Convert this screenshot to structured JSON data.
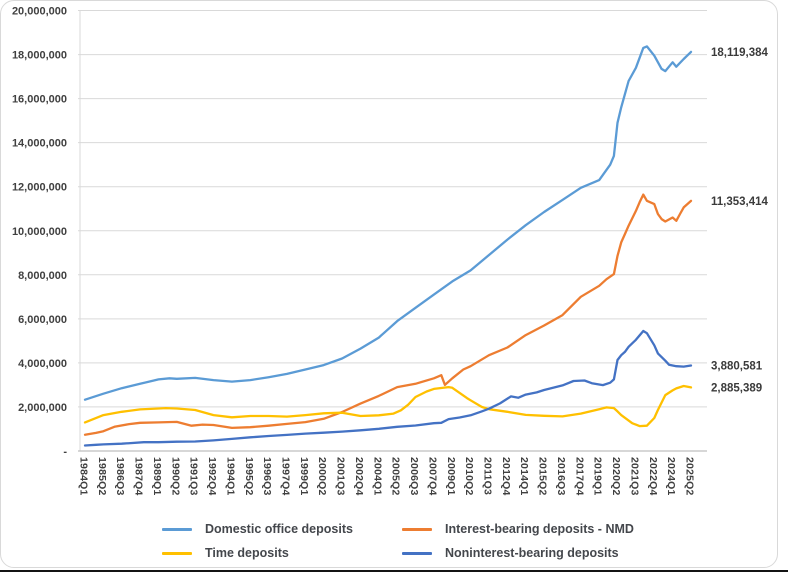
{
  "chart_data": {
    "type": "line",
    "title": "",
    "grid": "horizontal",
    "legend_position": "bottom",
    "text_color": "#404040",
    "gridline_color": "#D9D9D9",
    "axis_line_color": "#BFBFBF",
    "x_axis": {
      "first": "1984Q1",
      "last": "2025Q2",
      "total_points": 166,
      "quarters_per_tick": 5,
      "tick_labels": [
        "1984Q1",
        "1985Q2",
        "1986Q3",
        "1987Q4",
        "1989Q1",
        "1990Q2",
        "1991Q3",
        "1992Q4",
        "1994Q1",
        "1995Q2",
        "1996Q3",
        "1997Q4",
        "1999Q1",
        "2000Q2",
        "2001Q3",
        "2002Q4",
        "2004Q1",
        "2005Q2",
        "2006Q3",
        "2007Q4",
        "2009Q1",
        "2010Q2",
        "2011Q3",
        "2012Q4",
        "2014Q1",
        "2015Q2",
        "2016Q3",
        "2017Q4",
        "2019Q1",
        "2020Q2",
        "2021Q3",
        "2022Q4",
        "2024Q1",
        "2025Q2"
      ]
    },
    "y_axis": {
      "min": 0,
      "max": 20000000,
      "step": 2000000,
      "tick_labels": [
        "20,000,000",
        "18,000,000",
        "16,000,000",
        "14,000,000",
        "12,000,000",
        "10,000,000",
        "8,000,000",
        "6,000,000",
        "4,000,000",
        "2,000,000",
        "-"
      ]
    },
    "series": [
      {
        "name": "Domestic office deposits",
        "color": "#5B9BD5",
        "end_value": 18119384,
        "end_label": "18,119,384",
        "points": [
          [
            0,
            2330000
          ],
          [
            5,
            2600000
          ],
          [
            10,
            2850000
          ],
          [
            15,
            3050000
          ],
          [
            20,
            3250000
          ],
          [
            23,
            3300000
          ],
          [
            25,
            3280000
          ],
          [
            30,
            3320000
          ],
          [
            35,
            3220000
          ],
          [
            40,
            3150000
          ],
          [
            45,
            3220000
          ],
          [
            50,
            3350000
          ],
          [
            55,
            3500000
          ],
          [
            60,
            3700000
          ],
          [
            65,
            3900000
          ],
          [
            70,
            4200000
          ],
          [
            75,
            4650000
          ],
          [
            80,
            5150000
          ],
          [
            85,
            5900000
          ],
          [
            90,
            6500000
          ],
          [
            95,
            7100000
          ],
          [
            100,
            7700000
          ],
          [
            105,
            8200000
          ],
          [
            110,
            8900000
          ],
          [
            115,
            9600000
          ],
          [
            120,
            10250000
          ],
          [
            125,
            10850000
          ],
          [
            130,
            11400000
          ],
          [
            135,
            11950000
          ],
          [
            140,
            12300000
          ],
          [
            143,
            13000000
          ],
          [
            144,
            13400000
          ],
          [
            145,
            14900000
          ],
          [
            146,
            15600000
          ],
          [
            147,
            16200000
          ],
          [
            148,
            16800000
          ],
          [
            150,
            17400000
          ],
          [
            152,
            18300000
          ],
          [
            153,
            18370000
          ],
          [
            155,
            17950000
          ],
          [
            157,
            17350000
          ],
          [
            158,
            17250000
          ],
          [
            160,
            17650000
          ],
          [
            161,
            17450000
          ],
          [
            163,
            17800000
          ],
          [
            165,
            18119384
          ]
        ]
      },
      {
        "name": "Interest-bearing deposits - NMD",
        "color": "#ED7D31",
        "end_value": 11353414,
        "end_label": "11,353,414",
        "points": [
          [
            0,
            740000
          ],
          [
            3,
            820000
          ],
          [
            5,
            900000
          ],
          [
            8,
            1100000
          ],
          [
            12,
            1220000
          ],
          [
            15,
            1280000
          ],
          [
            20,
            1300000
          ],
          [
            25,
            1320000
          ],
          [
            29,
            1150000
          ],
          [
            32,
            1200000
          ],
          [
            35,
            1180000
          ],
          [
            40,
            1050000
          ],
          [
            45,
            1080000
          ],
          [
            50,
            1150000
          ],
          [
            55,
            1230000
          ],
          [
            60,
            1310000
          ],
          [
            65,
            1460000
          ],
          [
            70,
            1770000
          ],
          [
            75,
            2150000
          ],
          [
            80,
            2500000
          ],
          [
            85,
            2900000
          ],
          [
            90,
            3050000
          ],
          [
            95,
            3300000
          ],
          [
            97,
            3440000
          ],
          [
            98,
            3000000
          ],
          [
            100,
            3300000
          ],
          [
            103,
            3700000
          ],
          [
            105,
            3850000
          ],
          [
            110,
            4350000
          ],
          [
            115,
            4700000
          ],
          [
            120,
            5260000
          ],
          [
            125,
            5700000
          ],
          [
            130,
            6170000
          ],
          [
            135,
            7000000
          ],
          [
            140,
            7500000
          ],
          [
            142,
            7800000
          ],
          [
            144,
            8030000
          ],
          [
            145,
            8860000
          ],
          [
            146,
            9470000
          ],
          [
            147,
            9850000
          ],
          [
            148,
            10230000
          ],
          [
            150,
            10900000
          ],
          [
            151,
            11290000
          ],
          [
            152,
            11640000
          ],
          [
            153,
            11360000
          ],
          [
            155,
            11210000
          ],
          [
            156,
            10760000
          ],
          [
            157,
            10530000
          ],
          [
            158,
            10420000
          ],
          [
            160,
            10600000
          ],
          [
            161,
            10450000
          ],
          [
            162,
            10760000
          ],
          [
            163,
            11060000
          ],
          [
            165,
            11353414
          ]
        ]
      },
      {
        "name": "Time deposits",
        "color": "#FFC000",
        "end_value": 2885389,
        "end_label": "2,885,389",
        "points": [
          [
            0,
            1300000
          ],
          [
            5,
            1630000
          ],
          [
            10,
            1780000
          ],
          [
            15,
            1890000
          ],
          [
            20,
            1930000
          ],
          [
            22,
            1950000
          ],
          [
            25,
            1930000
          ],
          [
            30,
            1860000
          ],
          [
            35,
            1630000
          ],
          [
            40,
            1530000
          ],
          [
            45,
            1590000
          ],
          [
            50,
            1590000
          ],
          [
            55,
            1560000
          ],
          [
            60,
            1630000
          ],
          [
            65,
            1710000
          ],
          [
            70,
            1740000
          ],
          [
            75,
            1590000
          ],
          [
            80,
            1620000
          ],
          [
            84,
            1700000
          ],
          [
            86,
            1850000
          ],
          [
            88,
            2100000
          ],
          [
            90,
            2450000
          ],
          [
            93,
            2700000
          ],
          [
            95,
            2820000
          ],
          [
            99,
            2900000
          ],
          [
            100,
            2870000
          ],
          [
            104,
            2400000
          ],
          [
            105,
            2300000
          ],
          [
            108,
            2000000
          ],
          [
            110,
            1900000
          ],
          [
            115,
            1780000
          ],
          [
            120,
            1640000
          ],
          [
            125,
            1600000
          ],
          [
            130,
            1570000
          ],
          [
            135,
            1700000
          ],
          [
            140,
            1900000
          ],
          [
            142,
            1980000
          ],
          [
            144,
            1950000
          ],
          [
            145,
            1800000
          ],
          [
            146,
            1630000
          ],
          [
            149,
            1260000
          ],
          [
            151,
            1130000
          ],
          [
            153,
            1150000
          ],
          [
            155,
            1500000
          ],
          [
            156,
            1860000
          ],
          [
            158,
            2540000
          ],
          [
            160,
            2750000
          ],
          [
            161,
            2840000
          ],
          [
            163,
            2950000
          ],
          [
            165,
            2885389
          ]
        ]
      },
      {
        "name": "Noninterest-bearing deposits",
        "color": "#4472C4",
        "end_value": 3880581,
        "end_label": "3,880,581",
        "points": [
          [
            0,
            250000
          ],
          [
            3,
            280000
          ],
          [
            5,
            300000
          ],
          [
            10,
            330000
          ],
          [
            16,
            400000
          ],
          [
            20,
            400000
          ],
          [
            25,
            420000
          ],
          [
            30,
            430000
          ],
          [
            35,
            480000
          ],
          [
            40,
            550000
          ],
          [
            45,
            620000
          ],
          [
            50,
            680000
          ],
          [
            55,
            730000
          ],
          [
            60,
            790000
          ],
          [
            65,
            830000
          ],
          [
            70,
            880000
          ],
          [
            75,
            940000
          ],
          [
            80,
            1010000
          ],
          [
            85,
            1100000
          ],
          [
            90,
            1160000
          ],
          [
            95,
            1260000
          ],
          [
            97,
            1280000
          ],
          [
            99,
            1450000
          ],
          [
            102,
            1520000
          ],
          [
            105,
            1620000
          ],
          [
            108,
            1800000
          ],
          [
            110,
            1920000
          ],
          [
            113,
            2160000
          ],
          [
            116,
            2480000
          ],
          [
            118,
            2420000
          ],
          [
            120,
            2560000
          ],
          [
            123,
            2660000
          ],
          [
            125,
            2770000
          ],
          [
            130,
            2980000
          ],
          [
            133,
            3180000
          ],
          [
            136,
            3200000
          ],
          [
            138,
            3080000
          ],
          [
            141,
            2990000
          ],
          [
            143,
            3100000
          ],
          [
            144,
            3250000
          ],
          [
            145,
            4130000
          ],
          [
            146,
            4350000
          ],
          [
            147,
            4500000
          ],
          [
            148,
            4730000
          ],
          [
            150,
            5050000
          ],
          [
            152,
            5450000
          ],
          [
            153,
            5350000
          ],
          [
            155,
            4800000
          ],
          [
            156,
            4430000
          ],
          [
            158,
            4100000
          ],
          [
            159,
            3920000
          ],
          [
            161,
            3850000
          ],
          [
            163,
            3830000
          ],
          [
            165,
            3880581
          ]
        ]
      }
    ]
  }
}
